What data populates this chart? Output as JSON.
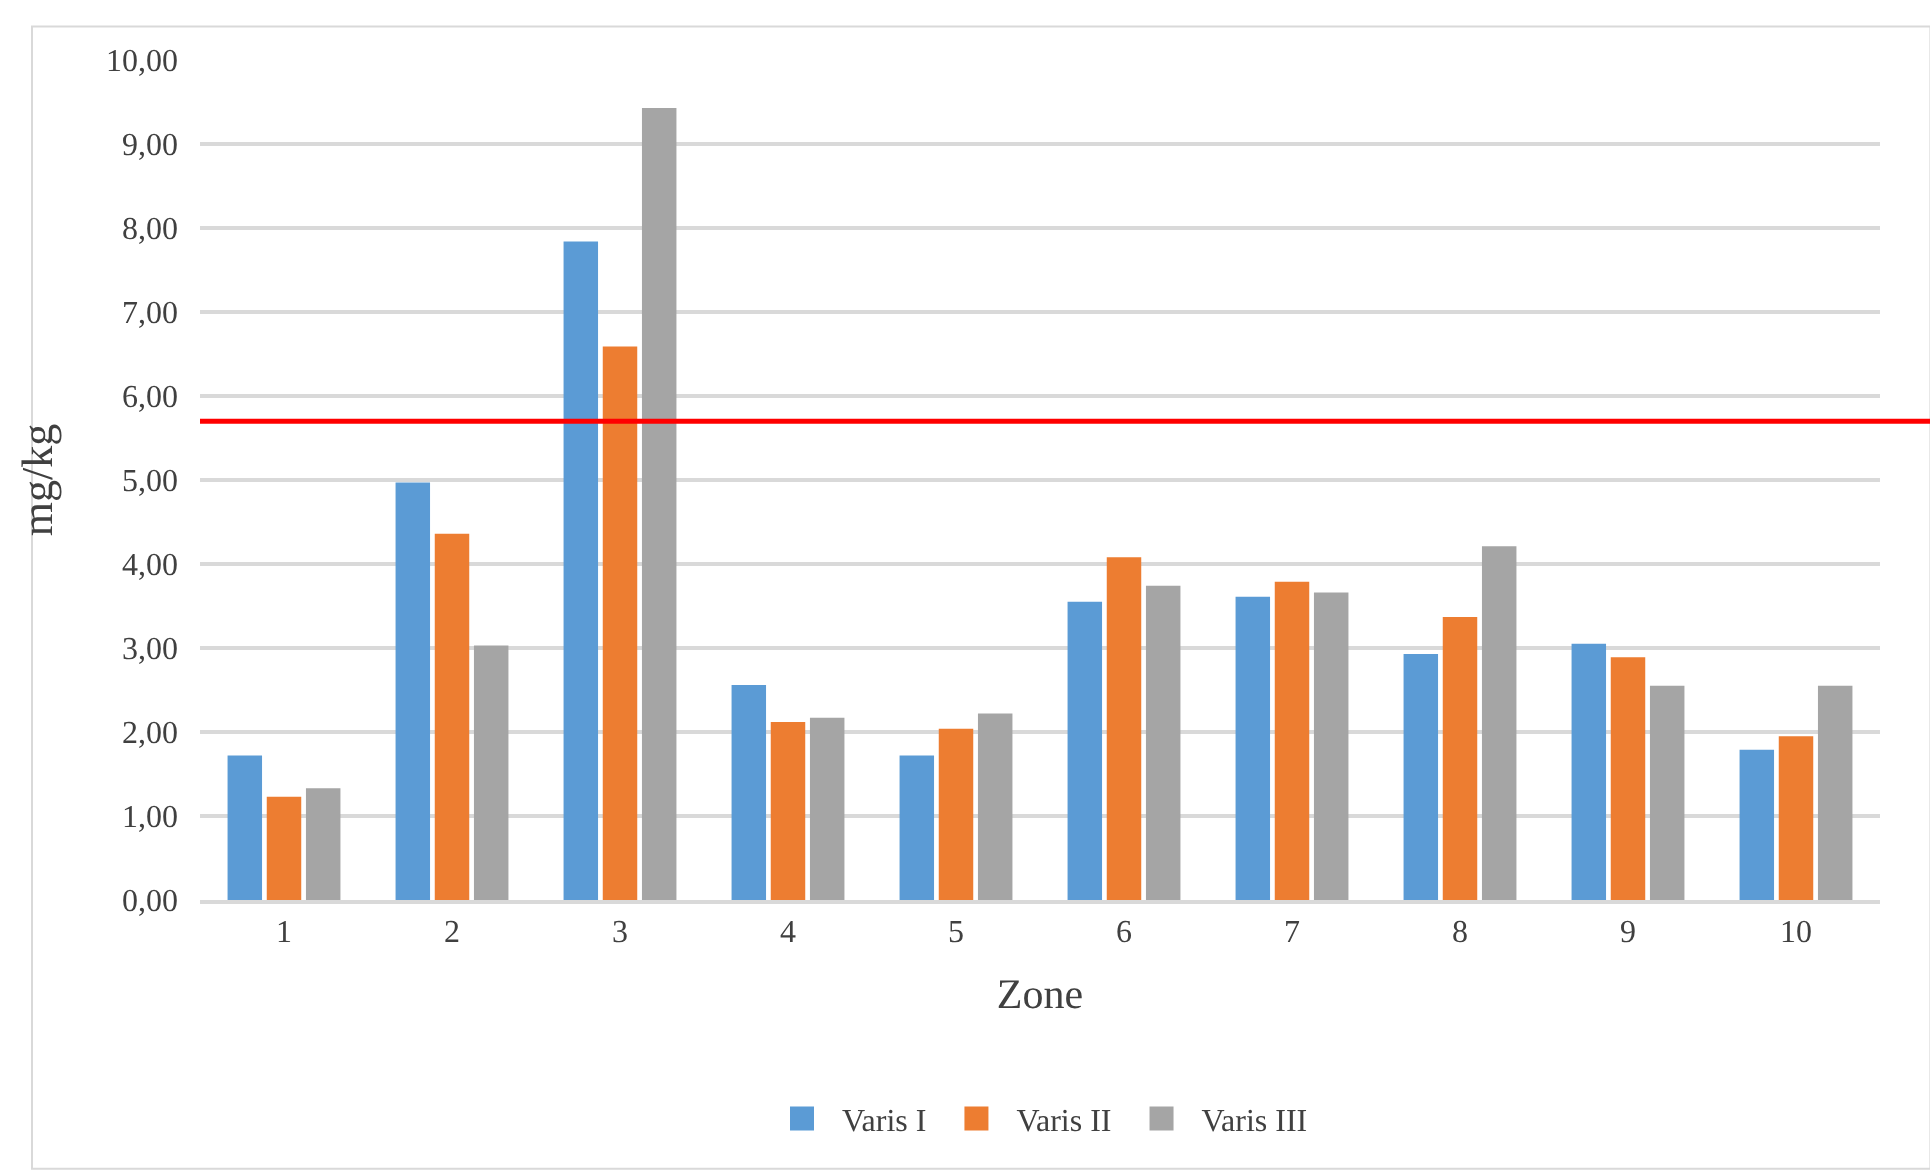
{
  "chart_data": {
    "type": "bar",
    "xlabel": "Zone",
    "ylabel": "mg/kg",
    "categories": [
      "1",
      "2",
      "3",
      "4",
      "5",
      "6",
      "7",
      "8",
      "9",
      "10"
    ],
    "series": [
      {
        "name": "Varis I",
        "color": "#5b9bd5",
        "values": [
          1.72,
          4.97,
          7.84,
          2.56,
          1.72,
          3.55,
          3.61,
          2.93,
          3.05,
          1.79
        ]
      },
      {
        "name": "Varis II",
        "color": "#ed7d31",
        "values": [
          1.23,
          4.36,
          6.59,
          2.12,
          2.04,
          4.08,
          3.79,
          3.37,
          2.89,
          1.95
        ]
      },
      {
        "name": "Varis III",
        "color": "#a5a5a5",
        "values": [
          1.33,
          3.03,
          9.43,
          2.17,
          2.22,
          3.74,
          3.66,
          4.21,
          2.55,
          2.55
        ]
      }
    ],
    "ylim": [
      0,
      10
    ],
    "yticks": [
      {
        "value": 0,
        "label": "0,00"
      },
      {
        "value": 1,
        "label": "1,00"
      },
      {
        "value": 2,
        "label": "2,00"
      },
      {
        "value": 3,
        "label": "3,00"
      },
      {
        "value": 4,
        "label": "4,00"
      },
      {
        "value": 5,
        "label": "5,00"
      },
      {
        "value": 6,
        "label": "6,00"
      },
      {
        "value": 7,
        "label": "7,00"
      },
      {
        "value": 8,
        "label": "8,00"
      },
      {
        "value": 9,
        "label": "9,00"
      },
      {
        "value": 10,
        "label": "10,00"
      }
    ],
    "ref_lines": [
      {
        "axis": "y",
        "value": 5.7,
        "color": "#ff0000"
      }
    ],
    "grid": "y",
    "legend": "bottom"
  }
}
